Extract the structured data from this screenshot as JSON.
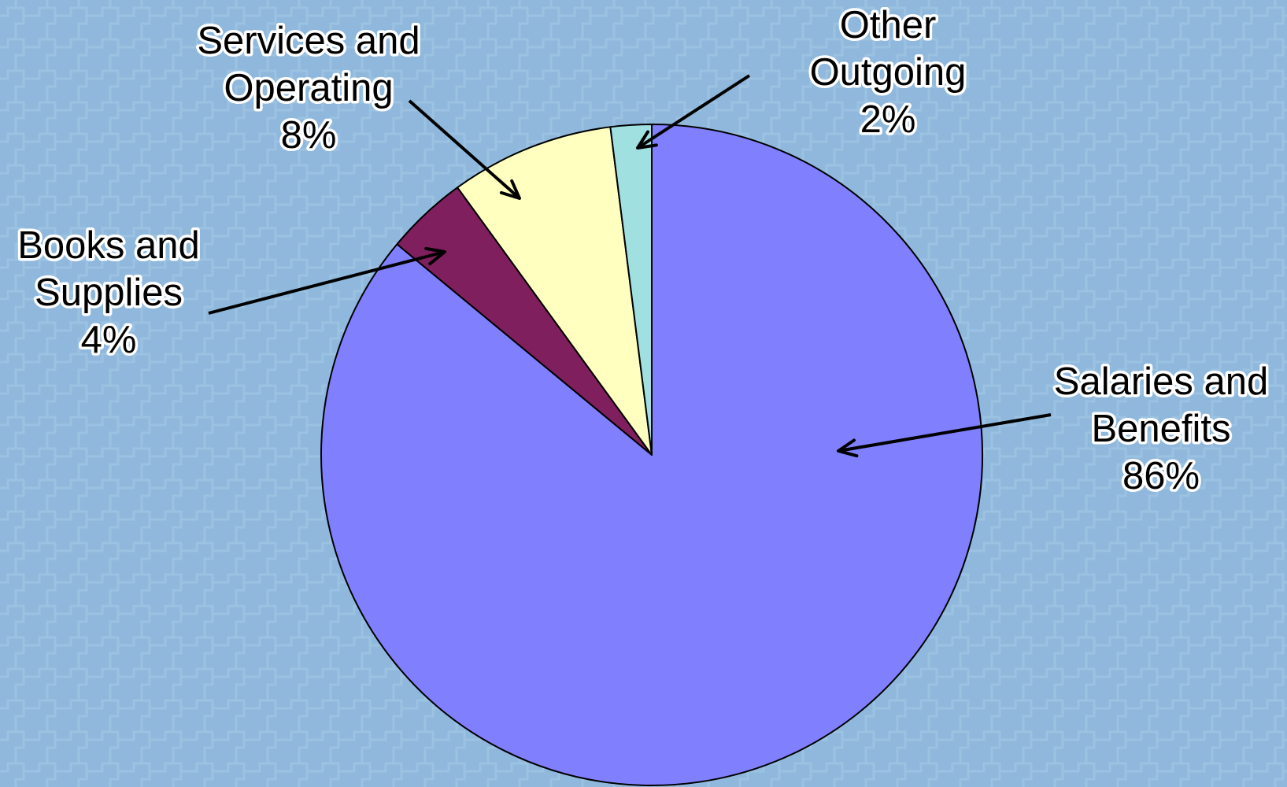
{
  "chart_data": {
    "type": "pie",
    "start": "top",
    "direction": "clockwise",
    "slices": [
      {
        "label_lines": [
          "Salaries and",
          "Benefits"
        ],
        "value": 86,
        "value_label": "86%",
        "color": "#8080ff"
      },
      {
        "label_lines": [
          "Books and",
          "Supplies"
        ],
        "value": 4,
        "value_label": "4%",
        "color": "#7f1f5e"
      },
      {
        "label_lines": [
          "Services and",
          "Operating"
        ],
        "value": 8,
        "value_label": "8%",
        "color": "#ffffc0"
      },
      {
        "label_lines": [
          "Other",
          "Outgoing"
        ],
        "value": 2,
        "value_label": "2%",
        "color": "#a0e0e0"
      }
    ],
    "background_color": "#8fb8dc"
  }
}
